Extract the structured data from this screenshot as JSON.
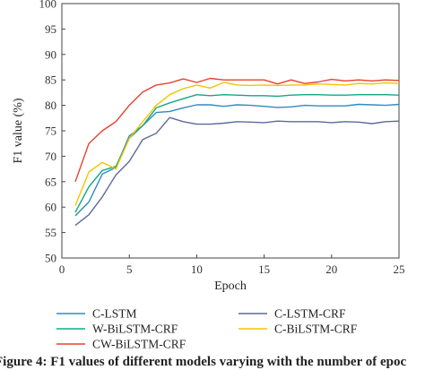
{
  "chart_data": {
    "type": "line",
    "xlabel": "Epoch",
    "ylabel": "F1 value (%)",
    "xlim": [
      0,
      25
    ],
    "ylim": [
      50,
      100
    ],
    "x_ticks": [
      0,
      5,
      10,
      15,
      20,
      25
    ],
    "y_ticks": [
      50,
      55,
      60,
      65,
      70,
      75,
      80,
      85,
      90,
      95,
      100
    ],
    "grid": false,
    "legend_position": "bottom",
    "x": [
      1,
      2,
      3,
      4,
      5,
      6,
      7,
      8,
      9,
      10,
      11,
      12,
      13,
      14,
      15,
      16,
      17,
      18,
      19,
      20,
      21,
      22,
      23,
      24,
      25
    ],
    "series": [
      {
        "name": "C-LSTM",
        "color": "#2e8bc0",
        "values": [
          58.3,
          61.0,
          66.5,
          67.8,
          74.0,
          76.0,
          78.6,
          78.8,
          79.5,
          80.1,
          80.1,
          79.8,
          80.1,
          80.0,
          79.8,
          79.6,
          79.7,
          80.0,
          79.9,
          79.9,
          79.9,
          80.2,
          80.1,
          80.0,
          80.2
        ]
      },
      {
        "name": "C-LSTM-CRF",
        "color": "#5c6aa0",
        "values": [
          56.4,
          58.5,
          62.0,
          66.3,
          69.0,
          73.3,
          74.5,
          77.6,
          76.8,
          76.3,
          76.3,
          76.5,
          76.8,
          76.7,
          76.6,
          76.9,
          76.8,
          76.8,
          76.8,
          76.6,
          76.8,
          76.7,
          76.4,
          76.8,
          76.9
        ]
      },
      {
        "name": "W-BiLSTM-CRF",
        "color": "#13a882",
        "values": [
          59.0,
          64.0,
          67.2,
          68.0,
          73.5,
          76.0,
          79.5,
          80.5,
          81.3,
          82.1,
          81.9,
          82.1,
          82.0,
          81.9,
          81.9,
          81.8,
          82.0,
          82.1,
          82.1,
          82.0,
          82.0,
          82.1,
          82.1,
          82.1,
          82.0
        ]
      },
      {
        "name": "C-BiLSTM-CRF",
        "color": "#f5c400",
        "values": [
          60.3,
          66.9,
          68.8,
          67.5,
          73.5,
          76.8,
          80.0,
          82.1,
          83.3,
          84.0,
          83.4,
          84.5,
          84.0,
          83.9,
          84.0,
          83.9,
          84.0,
          84.0,
          84.2,
          84.1,
          84.0,
          84.3,
          84.2,
          84.4,
          84.3
        ]
      },
      {
        "name": "CW-BiLSTM-CRF",
        "color": "#e8402f",
        "values": [
          65.0,
          72.5,
          75.0,
          76.8,
          80.0,
          82.6,
          84.0,
          84.4,
          85.2,
          84.5,
          85.3,
          85.0,
          85.0,
          85.0,
          85.0,
          84.2,
          85.0,
          84.3,
          84.6,
          85.1,
          84.8,
          85.0,
          84.8,
          85.0,
          84.9
        ]
      }
    ],
    "legend_order": [
      0,
      1,
      2,
      3,
      4
    ]
  },
  "caption": "Figure 4: F1 values of different models varying with the number of epoc"
}
